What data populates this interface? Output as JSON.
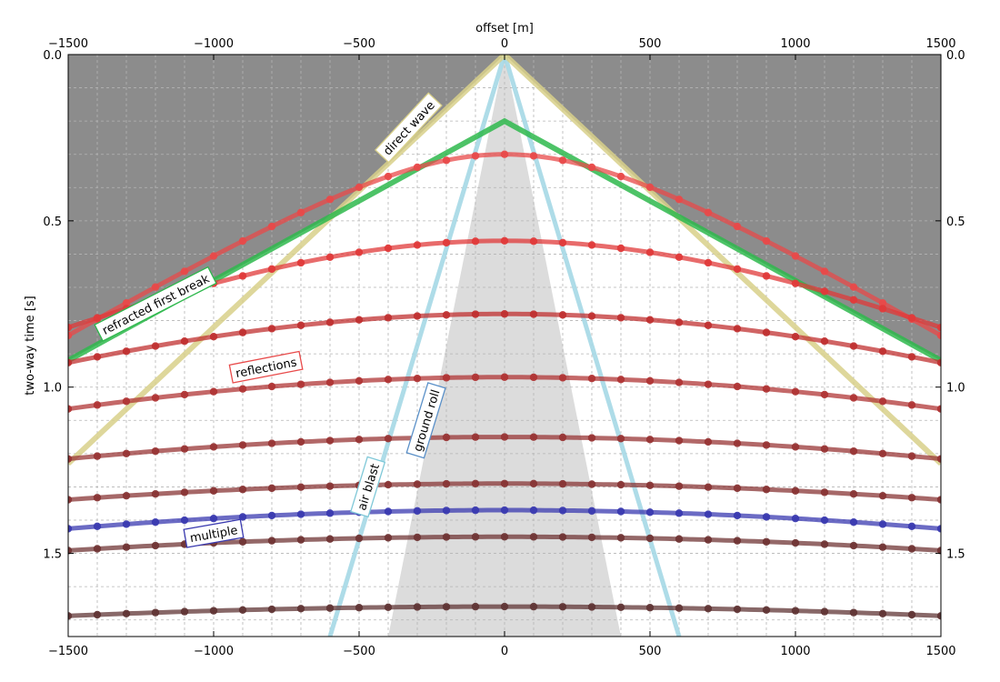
{
  "chart_data": {
    "type": "line",
    "title": "",
    "xlabel": "offset [m]",
    "ylabel": "two-way time [s]",
    "xlim": [
      -1500,
      1500
    ],
    "ylim": [
      1.75,
      0.0
    ],
    "y_axis_inverted": true,
    "x_axis_position": "top and bottom",
    "grid": true,
    "x_ticks": [
      -1500,
      -1000,
      -500,
      0,
      500,
      1000,
      1500
    ],
    "x_tick_labels": [
      "−1500",
      "−1000",
      "−500",
      "0",
      "500",
      "1000",
      "1500"
    ],
    "y_ticks": [
      0.0,
      0.5,
      1.0,
      1.5
    ],
    "y_tick_labels": [
      "0.0",
      "0.5",
      "1.0",
      "1.5"
    ],
    "sample_offsets": [
      -1500,
      -1400,
      -1300,
      -1200,
      -1100,
      -1000,
      -900,
      -800,
      -700,
      -600,
      -500,
      -400,
      -300,
      -200,
      -100,
      0,
      100,
      200,
      300,
      400,
      500,
      600,
      700,
      800,
      900,
      1000,
      1100,
      1200,
      1300,
      1400,
      1500
    ],
    "series": [
      {
        "kind": "direct",
        "x": [
          -1500,
          0,
          1500
        ],
        "t": [
          1.23,
          0.0,
          1.23
        ],
        "color": "#d8d08a",
        "label": "direct wave"
      },
      {
        "kind": "refracted",
        "x": [
          -1500,
          0,
          1500
        ],
        "t": [
          0.92,
          0.2,
          0.92
        ],
        "color": "#2eb84c",
        "label": "refracted first break"
      },
      {
        "kind": "air",
        "x": [
          -600,
          0,
          600
        ],
        "t": [
          1.75,
          0.0,
          1.75
        ],
        "color": "#a5d8e6",
        "label": "air blast"
      },
      {
        "kind": "roll",
        "x": [
          -400,
          0,
          400
        ],
        "t": [
          1.75,
          0.0,
          1.75
        ],
        "color": "#a5d8e6",
        "label": "ground roll"
      },
      {
        "kind": "reflection",
        "t0": 0.3,
        "v": 1900,
        "color": "#e84a4a",
        "label": "reflections"
      },
      {
        "kind": "reflection",
        "t0": 0.56,
        "v": 2500,
        "color": "#e03a3a"
      },
      {
        "kind": "reflection",
        "t0": 0.78,
        "v": 3000,
        "color": "#c03030"
      },
      {
        "kind": "reflection",
        "t0": 0.97,
        "v": 3400,
        "color": "#b03535"
      },
      {
        "kind": "reflection",
        "t0": 1.15,
        "v": 3800,
        "color": "#983535"
      },
      {
        "kind": "reflection",
        "t0": 1.29,
        "v": 4200,
        "color": "#883535"
      },
      {
        "kind": "multiple",
        "t0": 1.37,
        "v": 3800,
        "color": "#3a3ab0",
        "label": "multiple"
      },
      {
        "kind": "reflection",
        "t0": 1.45,
        "v": 4300,
        "color": "#703535"
      },
      {
        "kind": "reflection",
        "t0": 1.66,
        "v": 4900,
        "color": "#603535"
      }
    ],
    "labels": [
      {
        "text": "direct wave",
        "x": -330,
        "t": 0.22,
        "angle": -47,
        "border": "#d8d08a"
      },
      {
        "text": "refracted first break",
        "x": -1200,
        "t": 0.75,
        "angle": -27,
        "border": "#2eb84c"
      },
      {
        "text": "reflections",
        "x": -820,
        "t": 0.94,
        "angle": -11,
        "border": "#e84a4a"
      },
      {
        "text": "ground roll",
        "x": -270,
        "t": 1.1,
        "angle": -73,
        "border": "#5a90c8"
      },
      {
        "text": "air blast",
        "x": -470,
        "t": 1.3,
        "angle": -73,
        "border": "#7fc8d8"
      },
      {
        "text": "multiple",
        "x": -1000,
        "t": 1.44,
        "angle": -10,
        "border": "#3a3ab0"
      }
    ],
    "colors": {
      "shading": "#8c8c8c",
      "cone": "#dcdcdc",
      "grid": "#b4b4b4"
    }
  }
}
